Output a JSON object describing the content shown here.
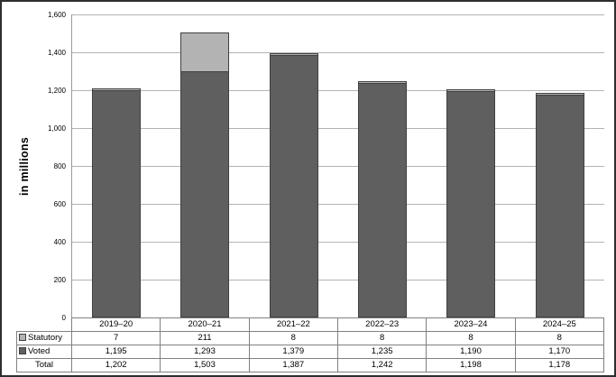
{
  "chart_data": {
    "type": "bar",
    "stacked": true,
    "title": "",
    "categories": [
      "2019–20",
      "2020–21",
      "2021–22",
      "2022–23",
      "2023–24",
      "2024–25"
    ],
    "series": [
      {
        "name": "Statutory",
        "values": [
          7,
          211,
          8,
          8,
          8,
          8
        ],
        "color": "#b3b3b3"
      },
      {
        "name": "Voted",
        "values": [
          1195,
          1293,
          1379,
          1235,
          1190,
          1170
        ],
        "color": "#5f5f5f"
      }
    ],
    "totals": [
      1202,
      1503,
      1387,
      1242,
      1198,
      1178
    ],
    "xlabel": "",
    "ylabel": "in millions",
    "ylim": [
      0,
      1600
    ],
    "ytick_interval": 200,
    "yticks_top_to_bottom": [
      "1,600",
      "1,400",
      "1,200",
      "1,000",
      "800",
      "600",
      "400",
      "200",
      "0"
    ],
    "grid": true,
    "legend_position": "table-left"
  },
  "table": {
    "rows": [
      {
        "label": "Statutory",
        "marker": "statutory-square",
        "values": [
          "7",
          "211",
          "8",
          "8",
          "8",
          "8"
        ]
      },
      {
        "label": "Voted",
        "marker": "voted-square",
        "values": [
          "1,195",
          "1,293",
          "1,379",
          "1,235",
          "1,190",
          "1,170"
        ]
      },
      {
        "label": "Total",
        "marker": null,
        "values": [
          "1,202",
          "1,503",
          "1,387",
          "1,242",
          "1,198",
          "1,178"
        ]
      }
    ]
  },
  "colors": {
    "statutory": "#b3b3b3",
    "voted": "#5f5f5f",
    "segment_border": "#404040",
    "gridline": "#b3b3b3",
    "table_border": "#808080",
    "outer_border": "#2e2e2e"
  }
}
